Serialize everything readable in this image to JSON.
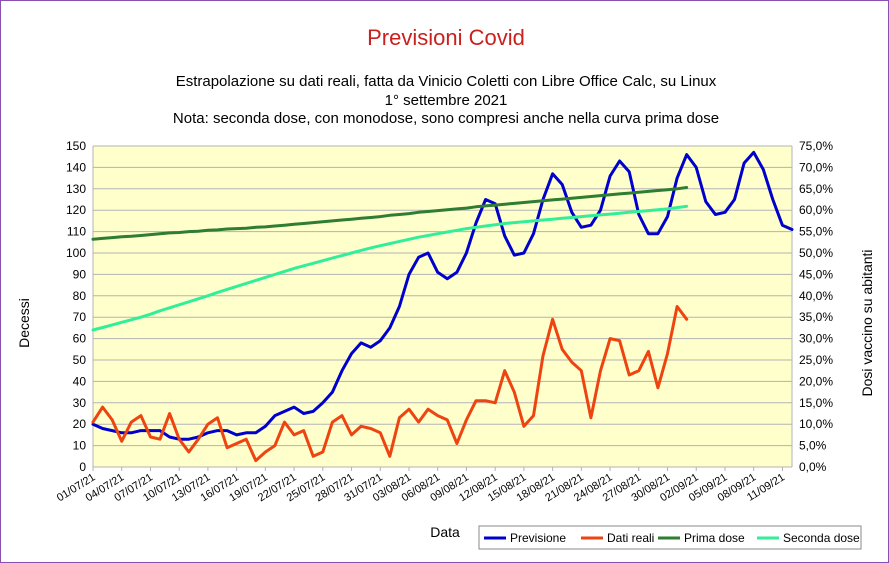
{
  "chart_data": {
    "type": "line",
    "title": "Previsioni Covid",
    "subtitle_lines": [
      "Estrapolazione su dati reali, fatta da Vinicio Coletti con Libre Office Calc, su Linux",
      "1° settembre 2021",
      "Nota: seconda dose, con monodose, sono compresi anche nella curva prima dose"
    ],
    "xlabel": "Data",
    "ylabel_left": "Decessi",
    "ylabel_right": "Dosi vaccino su abitanti",
    "ylim_left": [
      0,
      150
    ],
    "ylim_right": [
      0,
      75
    ],
    "yticks_left": [
      "0",
      "10",
      "20",
      "30",
      "40",
      "50",
      "60",
      "70",
      "80",
      "90",
      "100",
      "110",
      "120",
      "130",
      "140",
      "150"
    ],
    "yticks_right": [
      "0,0%",
      "5,0%",
      "10,0%",
      "15,0%",
      "20,0%",
      "25,0%",
      "30,0%",
      "35,0%",
      "40,0%",
      "45,0%",
      "50,0%",
      "55,0%",
      "60,0%",
      "65,0%",
      "70,0%",
      "75,0%"
    ],
    "x_tick_labels": [
      "01/07/21",
      "04/07/21",
      "07/07/21",
      "10/07/21",
      "13/07/21",
      "16/07/21",
      "19/07/21",
      "22/07/21",
      "25/07/21",
      "28/07/21",
      "31/07/21",
      "03/08/21",
      "06/08/21",
      "09/08/21",
      "12/08/21",
      "15/08/21",
      "18/08/21",
      "21/08/21",
      "24/08/21",
      "27/08/21",
      "30/08/21",
      "02/09/21",
      "05/09/21",
      "08/09/21",
      "11/09/21"
    ],
    "x_start": "01/07/21",
    "grid": true,
    "legend_position": "bottom-right",
    "series": [
      {
        "name": "Previsione",
        "axis": "left",
        "color": "#0000cc",
        "values": [
          20,
          18,
          17,
          16,
          16,
          17,
          17,
          17,
          14,
          13,
          13,
          14,
          16,
          17,
          17,
          15,
          16,
          16,
          19,
          24,
          26,
          28,
          25,
          26,
          30,
          35,
          45,
          53,
          58,
          56,
          59,
          65,
          75,
          90,
          98,
          100,
          91,
          88,
          91,
          100,
          114,
          125,
          123,
          108,
          99,
          100,
          109,
          125,
          137,
          132,
          119,
          112,
          113,
          120,
          136,
          143,
          138,
          118,
          109,
          109,
          117,
          135,
          146,
          140,
          124,
          118,
          119,
          125,
          142,
          147,
          139,
          125,
          113,
          111
        ]
      },
      {
        "name": "Dati reali",
        "axis": "left",
        "color": "#ee4411",
        "values": [
          21,
          28,
          22,
          12,
          21,
          24,
          14,
          13,
          25,
          13,
          7,
          13,
          20,
          23,
          9,
          11,
          13,
          3,
          7,
          10,
          21,
          15,
          17,
          5,
          7,
          21,
          24,
          15,
          19,
          18,
          16,
          5,
          23,
          27,
          21,
          27,
          24,
          22,
          11,
          22,
          31,
          31,
          30,
          45,
          35,
          19,
          24,
          52,
          69,
          55,
          49,
          45,
          23,
          45,
          60,
          59,
          43,
          45,
          54,
          37,
          53,
          75,
          69
        ]
      },
      {
        "name": "Prima dose",
        "axis": "right",
        "color": "#2e7d32",
        "values": [
          53.2,
          53.4,
          53.6,
          53.8,
          53.9,
          54.1,
          54.3,
          54.5,
          54.7,
          54.8,
          55.0,
          55.1,
          55.3,
          55.4,
          55.6,
          55.7,
          55.8,
          56.0,
          56.1,
          56.3,
          56.5,
          56.7,
          56.9,
          57.1,
          57.3,
          57.5,
          57.7,
          57.9,
          58.1,
          58.3,
          58.5,
          58.8,
          59.0,
          59.2,
          59.5,
          59.7,
          59.9,
          60.1,
          60.3,
          60.5,
          60.8,
          61.0,
          61.2,
          61.4,
          61.6,
          61.8,
          62.0,
          62.2,
          62.4,
          62.6,
          62.8,
          63.0,
          63.2,
          63.4,
          63.6,
          63.8,
          64.0,
          64.2,
          64.4,
          64.6,
          64.8,
          65.0,
          65.3
        ]
      },
      {
        "name": "Seconda dose",
        "axis": "right",
        "color": "#33ee99",
        "values": [
          32.0,
          32.6,
          33.2,
          33.8,
          34.4,
          35.0,
          35.7,
          36.5,
          37.2,
          37.9,
          38.6,
          39.3,
          40.0,
          40.8,
          41.5,
          42.2,
          42.9,
          43.6,
          44.3,
          45.0,
          45.7,
          46.4,
          47.0,
          47.6,
          48.2,
          48.8,
          49.4,
          50.0,
          50.6,
          51.2,
          51.7,
          52.2,
          52.7,
          53.2,
          53.7,
          54.1,
          54.5,
          54.9,
          55.3,
          55.7,
          56.0,
          56.3,
          56.6,
          56.9,
          57.1,
          57.3,
          57.5,
          57.7,
          57.9,
          58.1,
          58.3,
          58.5,
          58.7,
          58.9,
          59.1,
          59.3,
          59.5,
          59.7,
          59.9,
          60.1,
          60.3,
          60.6,
          60.9
        ]
      }
    ]
  }
}
